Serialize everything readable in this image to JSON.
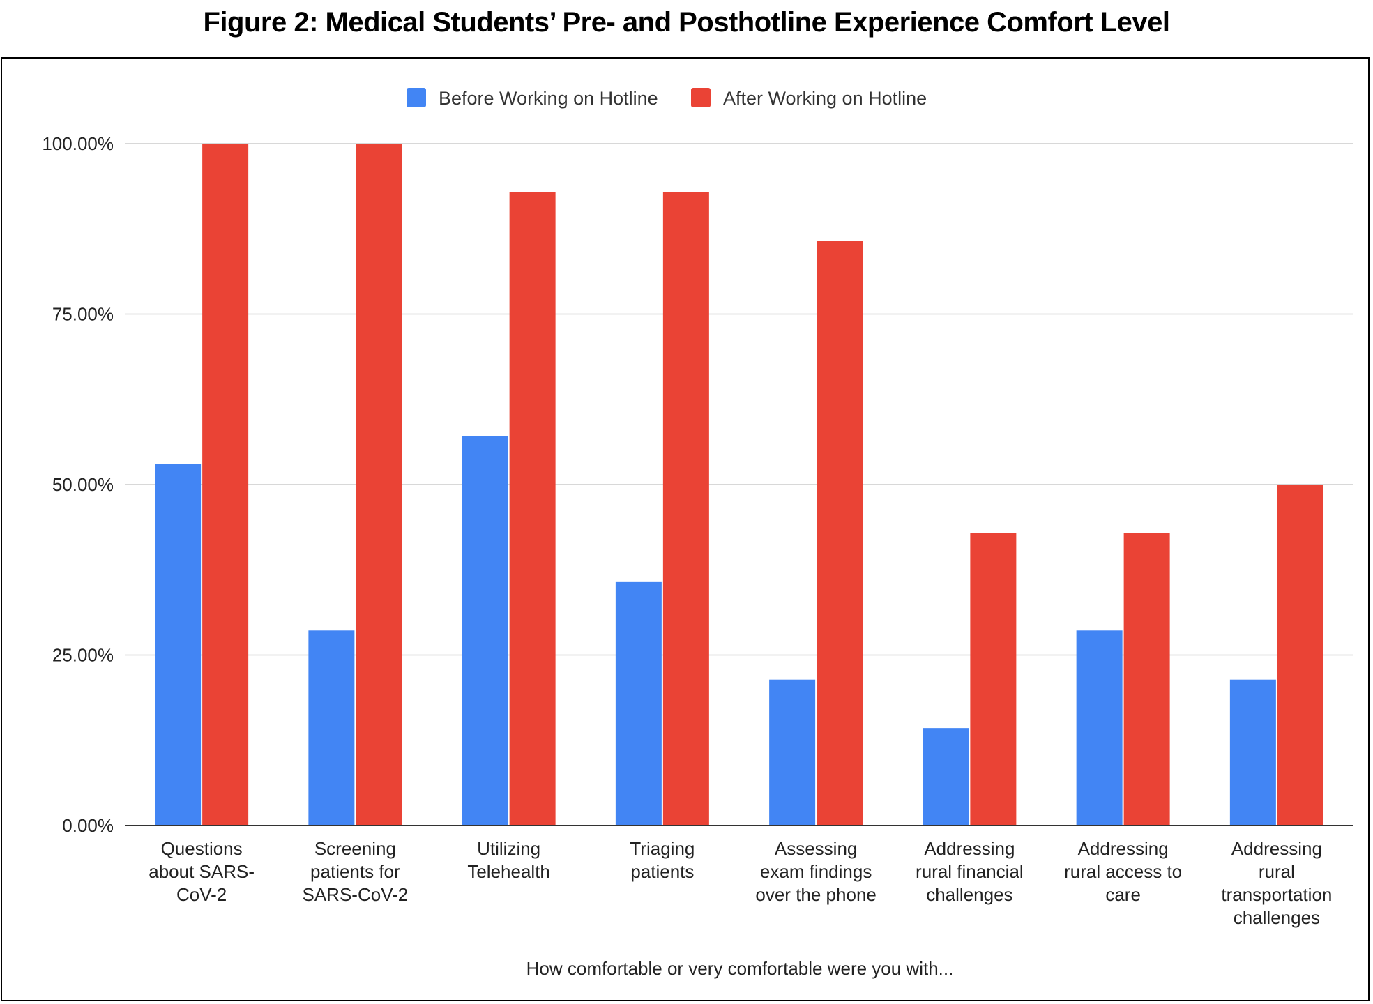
{
  "figure_title": "Figure 2: Medical Students’ Pre- and Posthotline Experience Comfort Level",
  "chart_data": {
    "type": "bar",
    "title": "",
    "xlabel": "How comfortable or very comfortable were you with...",
    "ylabel": "",
    "ylim": [
      0,
      100
    ],
    "yticks": [
      "0.00%",
      "25.00%",
      "50.00%",
      "75.00%",
      "100.00%"
    ],
    "ytick_values": [
      0,
      25,
      50,
      75,
      100
    ],
    "grid": true,
    "legend_position": "top-center",
    "categories": [
      [
        "Questions",
        "about SARS-",
        "CoV-2"
      ],
      [
        "Screening",
        "patients for",
        "SARS-CoV-2"
      ],
      [
        "Utilizing",
        "Telehealth"
      ],
      [
        "Triaging",
        "patients"
      ],
      [
        "Assessing",
        "exam findings",
        "over the phone"
      ],
      [
        "Addressing",
        "rural financial",
        "challenges"
      ],
      [
        "Addressing",
        "rural access to",
        "care"
      ],
      [
        "Addressing",
        "rural",
        "transportation",
        "challenges"
      ]
    ],
    "series": [
      {
        "name": "Before Working on Hotline",
        "color": "#4285f4",
        "values": [
          53,
          28.6,
          57.1,
          35.7,
          21.4,
          14.3,
          28.6,
          21.4
        ]
      },
      {
        "name": "After Working on Hotline",
        "color": "#ea4335",
        "values": [
          100,
          100,
          92.9,
          92.9,
          85.7,
          42.9,
          42.9,
          50
        ]
      }
    ]
  }
}
